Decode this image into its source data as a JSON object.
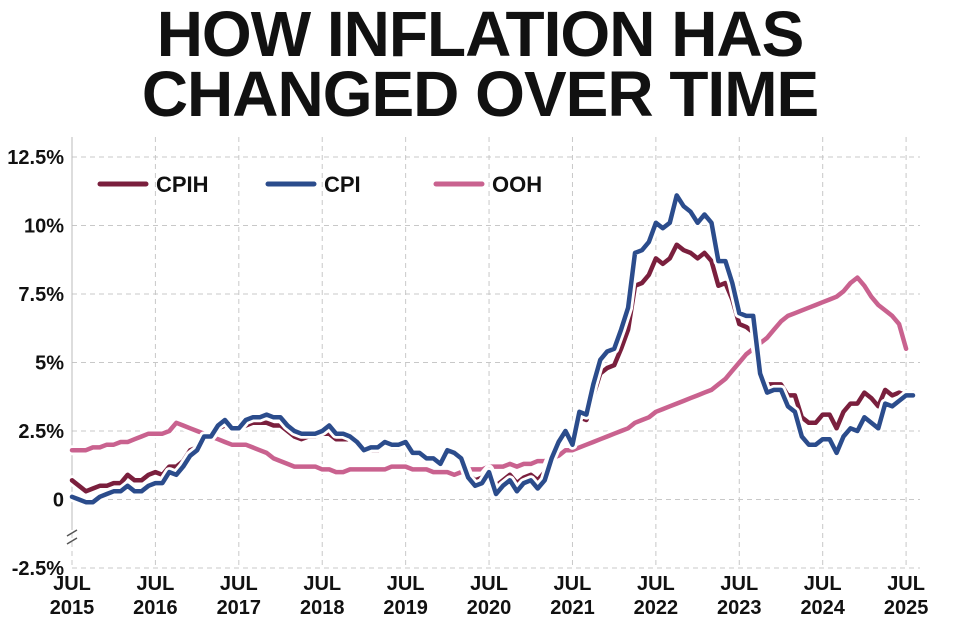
{
  "chart_data": {
    "type": "line",
    "title": "HOW INFLATION HAS CHANGED OVER TIME",
    "x": [
      "2015-07",
      "2015-08",
      "2015-09",
      "2015-10",
      "2015-11",
      "2015-12",
      "2016-01",
      "2016-02",
      "2016-03",
      "2016-04",
      "2016-05",
      "2016-06",
      "2016-07",
      "2016-08",
      "2016-09",
      "2016-10",
      "2016-11",
      "2016-12",
      "2017-01",
      "2017-02",
      "2017-03",
      "2017-04",
      "2017-05",
      "2017-06",
      "2017-07",
      "2017-08",
      "2017-09",
      "2017-10",
      "2017-11",
      "2017-12",
      "2018-01",
      "2018-02",
      "2018-03",
      "2018-04",
      "2018-05",
      "2018-06",
      "2018-07",
      "2018-08",
      "2018-09",
      "2018-10",
      "2018-11",
      "2018-12",
      "2019-01",
      "2019-02",
      "2019-03",
      "2019-04",
      "2019-05",
      "2019-06",
      "2019-07",
      "2019-08",
      "2019-09",
      "2019-10",
      "2019-11",
      "2019-12",
      "2020-01",
      "2020-02",
      "2020-03",
      "2020-04",
      "2020-05",
      "2020-06",
      "2020-07",
      "2020-08",
      "2020-09",
      "2020-10",
      "2020-11",
      "2020-12",
      "2021-01",
      "2021-02",
      "2021-03",
      "2021-04",
      "2021-05",
      "2021-06",
      "2021-07",
      "2021-08",
      "2021-09",
      "2021-10",
      "2021-11",
      "2021-12",
      "2022-01",
      "2022-02",
      "2022-03",
      "2022-04",
      "2022-05",
      "2022-06",
      "2022-07",
      "2022-08",
      "2022-09",
      "2022-10",
      "2022-11",
      "2022-12",
      "2023-01",
      "2023-02",
      "2023-03",
      "2023-04",
      "2023-05",
      "2023-06",
      "2023-07",
      "2023-08",
      "2023-09",
      "2023-10",
      "2023-11",
      "2023-12",
      "2024-01",
      "2024-02",
      "2024-03",
      "2024-04",
      "2024-05",
      "2024-06",
      "2024-07",
      "2024-08",
      "2024-09",
      "2024-10",
      "2024-11",
      "2024-12",
      "2025-01",
      "2025-02",
      "2025-03",
      "2025-04",
      "2025-05",
      "2025-06",
      "2025-07",
      "2025-08"
    ],
    "series": [
      {
        "name": "OOH",
        "color": "#c9628f",
        "values": [
          1.8,
          1.8,
          1.8,
          1.9,
          1.9,
          2.0,
          2.0,
          2.1,
          2.1,
          2.2,
          2.3,
          2.4,
          2.4,
          2.4,
          2.5,
          2.8,
          2.7,
          2.6,
          2.5,
          2.4,
          2.3,
          2.2,
          2.1,
          2.0,
          2.0,
          2.0,
          1.9,
          1.8,
          1.7,
          1.5,
          1.4,
          1.3,
          1.2,
          1.2,
          1.2,
          1.2,
          1.1,
          1.1,
          1.0,
          1.0,
          1.1,
          1.1,
          1.1,
          1.1,
          1.1,
          1.1,
          1.2,
          1.2,
          1.2,
          1.1,
          1.1,
          1.1,
          1.0,
          1.0,
          1.0,
          0.9,
          1.0,
          1.1,
          1.1,
          1.1,
          1.2,
          1.2,
          1.2,
          1.3,
          1.2,
          1.3,
          1.3,
          1.4,
          1.4,
          1.5,
          1.6,
          1.8,
          1.8,
          1.9,
          2.0,
          2.1,
          2.2,
          2.3,
          2.4,
          2.5,
          2.6,
          2.8,
          2.9,
          3.0,
          3.2,
          3.3,
          3.4,
          3.5,
          3.6,
          3.7,
          3.8,
          3.9,
          4.0,
          4.2,
          4.4,
          4.7,
          5.0,
          5.3,
          5.5,
          5.7,
          5.9,
          6.2,
          6.5,
          6.7,
          6.8,
          6.9,
          7.0,
          7.1,
          7.2,
          7.3,
          7.4,
          7.6,
          7.9,
          8.1,
          7.8,
          7.4,
          7.1,
          6.9,
          6.7,
          6.4,
          5.5,
          null
        ]
      },
      {
        "name": "CPIH",
        "color": "#7a1f3d",
        "values": [
          0.7,
          0.5,
          0.3,
          0.4,
          0.5,
          0.5,
          0.6,
          0.6,
          0.9,
          0.7,
          0.7,
          0.9,
          1.0,
          0.9,
          1.2,
          1.2,
          1.4,
          1.8,
          1.9,
          2.3,
          2.3,
          2.6,
          2.7,
          2.6,
          2.6,
          2.7,
          2.8,
          2.8,
          2.8,
          2.7,
          2.7,
          2.5,
          2.3,
          2.2,
          2.3,
          2.3,
          2.4,
          2.4,
          2.2,
          2.2,
          2.2,
          2.0,
          1.8,
          1.8,
          1.8,
          2.0,
          1.9,
          1.9,
          2.0,
          1.7,
          1.7,
          1.5,
          1.5,
          1.4,
          1.8,
          1.7,
          1.5,
          0.9,
          0.7,
          0.8,
          1.1,
          0.5,
          0.7,
          0.9,
          0.6,
          0.8,
          0.9,
          0.7,
          1.0,
          1.6,
          2.1,
          2.4,
          2.1,
          3.0,
          2.9,
          3.8,
          4.6,
          4.8,
          4.9,
          5.5,
          6.2,
          7.8,
          7.9,
          8.2,
          8.8,
          8.6,
          8.8,
          9.3,
          9.1,
          9.0,
          8.8,
          9.0,
          8.7,
          7.8,
          7.9,
          7.3,
          6.4,
          6.3,
          6.1,
          4.7,
          4.2,
          4.2,
          4.2,
          3.8,
          3.8,
          3.0,
          2.8,
          2.8,
          3.1,
          3.1,
          2.6,
          3.2,
          3.5,
          3.5,
          3.9,
          3.7,
          3.4,
          4.0,
          3.8,
          3.9,
          3.8,
          3.9
        ]
      },
      {
        "name": "CPI",
        "color": "#2b4c8c",
        "values": [
          0.1,
          0.0,
          -0.1,
          -0.1,
          0.1,
          0.2,
          0.3,
          0.3,
          0.5,
          0.3,
          0.3,
          0.5,
          0.6,
          0.6,
          1.0,
          0.9,
          1.2,
          1.6,
          1.8,
          2.3,
          2.3,
          2.7,
          2.9,
          2.6,
          2.6,
          2.9,
          3.0,
          3.0,
          3.1,
          3.0,
          3.0,
          2.7,
          2.5,
          2.4,
          2.4,
          2.4,
          2.5,
          2.7,
          2.4,
          2.4,
          2.3,
          2.1,
          1.8,
          1.9,
          1.9,
          2.1,
          2.0,
          2.0,
          2.1,
          1.7,
          1.7,
          1.5,
          1.5,
          1.3,
          1.8,
          1.7,
          1.5,
          0.8,
          0.5,
          0.6,
          1.0,
          0.2,
          0.5,
          0.7,
          0.3,
          0.6,
          0.7,
          0.4,
          0.7,
          1.5,
          2.1,
          2.5,
          2.0,
          3.2,
          3.1,
          4.2,
          5.1,
          5.4,
          5.5,
          6.2,
          7.0,
          9.0,
          9.1,
          9.4,
          10.1,
          9.9,
          10.1,
          11.1,
          10.7,
          10.5,
          10.1,
          10.4,
          10.1,
          8.7,
          8.7,
          7.9,
          6.8,
          6.7,
          6.7,
          4.6,
          3.9,
          4.0,
          4.0,
          3.4,
          3.2,
          2.3,
          2.0,
          2.0,
          2.2,
          2.2,
          1.7,
          2.3,
          2.6,
          2.5,
          3.0,
          2.8,
          2.6,
          3.5,
          3.4,
          3.6,
          3.8,
          3.8
        ]
      }
    ],
    "xlim": [
      "2015-07",
      "2025-09"
    ],
    "xticks": [
      {
        "value": "2015-07",
        "label": "JUL 2015"
      },
      {
        "value": "2016-07",
        "label": "JUL 2016"
      },
      {
        "value": "2017-07",
        "label": "JUL 2017"
      },
      {
        "value": "2018-07",
        "label": "JUL 2018"
      },
      {
        "value": "2019-07",
        "label": "JUL 2019"
      },
      {
        "value": "2020-07",
        "label": "JUL 2020"
      },
      {
        "value": "2021-07",
        "label": "JUL 2021"
      },
      {
        "value": "2022-07",
        "label": "JUL 2022"
      },
      {
        "value": "2023-07",
        "label": "JUL 2023"
      },
      {
        "value": "2024-07",
        "label": "JUL 2024"
      },
      {
        "value": "2025-07",
        "label": "JUL 2025"
      }
    ],
    "ylim": [
      -2.5,
      12.5
    ],
    "yticks": [
      {
        "value": -2.5,
        "label": "-2.5%"
      },
      0,
      {
        "value": 2.5,
        "label": "2.5%"
      },
      {
        "value": 5,
        "label": "5%"
      },
      {
        "value": 7.5,
        "label": "7.5%"
      },
      {
        "value": 10,
        "label": "10%"
      },
      {
        "value": 12.5,
        "label": "12.5%"
      }
    ],
    "grid": true,
    "legend": "top-left"
  }
}
